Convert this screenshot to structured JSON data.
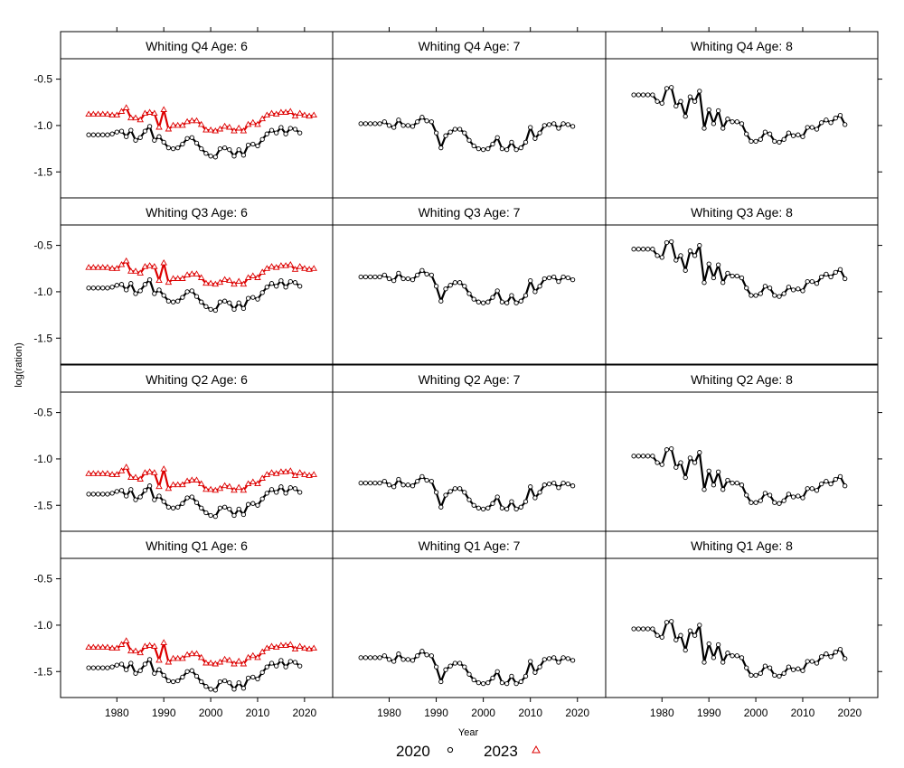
{
  "chart_data": {
    "type": "line",
    "xlabel": "Year",
    "ylabel": "log(ration)",
    "xlim": [
      1968,
      2026
    ],
    "ylim": [
      -1.78,
      -0.28
    ],
    "x_ticks": [
      1980,
      1990,
      2000,
      2010,
      2020
    ],
    "y_ticks": [
      -1.5,
      -1.0,
      -0.5
    ],
    "grid": false,
    "legend": {
      "placement": "bottom",
      "entries": [
        {
          "name": "2020",
          "color": "#000000",
          "marker": "circle"
        },
        {
          "name": "2023",
          "color": "#dd0000",
          "marker": "triangle"
        }
      ]
    },
    "panels": [
      {
        "title": "Whiting Q4 Age: 6",
        "row": 0,
        "col": 0,
        "base": -1.1,
        "has2023": true,
        "offset2023": 0.22
      },
      {
        "title": "Whiting Q4 Age: 7",
        "row": 0,
        "col": 1,
        "base": -0.98,
        "has2023": false
      },
      {
        "title": "Whiting Q4 Age: 8",
        "row": 0,
        "col": 2,
        "base": -0.67,
        "has2023": false
      },
      {
        "title": "Whiting Q3 Age: 6",
        "row": 1,
        "col": 0,
        "base": -0.96,
        "has2023": true,
        "offset2023": 0.22
      },
      {
        "title": "Whiting Q3 Age: 7",
        "row": 1,
        "col": 1,
        "base": -0.84,
        "has2023": false
      },
      {
        "title": "Whiting Q3 Age: 8",
        "row": 1,
        "col": 2,
        "base": -0.54,
        "has2023": false
      },
      {
        "title": "Whiting Q2 Age: 6",
        "row": 2,
        "col": 0,
        "base": -1.38,
        "has2023": true,
        "offset2023": 0.22
      },
      {
        "title": "Whiting Q2 Age: 7",
        "row": 2,
        "col": 1,
        "base": -1.26,
        "has2023": false
      },
      {
        "title": "Whiting Q2 Age: 8",
        "row": 2,
        "col": 2,
        "base": -0.97,
        "has2023": false
      },
      {
        "title": "Whiting Q1 Age: 6",
        "row": 3,
        "col": 0,
        "base": -1.46,
        "has2023": true,
        "offset2023": 0.22
      },
      {
        "title": "Whiting Q1 Age: 7",
        "row": 3,
        "col": 1,
        "base": -1.35,
        "has2023": false
      },
      {
        "title": "Whiting Q1 Age: 8",
        "row": 3,
        "col": 2,
        "base": -1.04,
        "has2023": false
      }
    ],
    "series_shapes": {
      "age6_2020": {
        "x": [
          1974,
          1975,
          1976,
          1977,
          1978,
          1979,
          1980,
          1981,
          1982,
          1983,
          1984,
          1985,
          1986,
          1987,
          1988,
          1989,
          1990,
          1991,
          1992,
          1993,
          1994,
          1995,
          1996,
          1997,
          1998,
          1999,
          2000,
          2001,
          2002,
          2003,
          2004,
          2005,
          2006,
          2007,
          2008,
          2009,
          2010,
          2011,
          2012,
          2013,
          2014,
          2015,
          2016,
          2017,
          2018,
          2019
        ],
        "y": [
          0,
          0,
          0,
          0,
          0,
          0.01,
          0.03,
          0.04,
          -0.02,
          0.05,
          -0.06,
          -0.03,
          0.04,
          0.09,
          -0.06,
          -0.02,
          -0.08,
          -0.14,
          -0.15,
          -0.14,
          -0.1,
          -0.04,
          -0.03,
          -0.09,
          -0.15,
          -0.2,
          -0.23,
          -0.24,
          -0.15,
          -0.14,
          -0.16,
          -0.23,
          -0.16,
          -0.22,
          -0.11,
          -0.1,
          -0.12,
          -0.05,
          0.01,
          0.05,
          0.02,
          0.08,
          0.01,
          0.07,
          0.06,
          0.02
        ]
      },
      "age6_2023": {
        "x": [
          1974,
          1975,
          1976,
          1977,
          1978,
          1979,
          1980,
          1981,
          1982,
          1983,
          1984,
          1985,
          1986,
          1987,
          1988,
          1989,
          1990,
          1991,
          1992,
          1993,
          1994,
          1995,
          1996,
          1997,
          1998,
          1999,
          2000,
          2001,
          2002,
          2003,
          2004,
          2005,
          2006,
          2007,
          2008,
          2009,
          2010,
          2011,
          2012,
          2013,
          2014,
          2015,
          2016,
          2017,
          2018,
          2019,
          2020,
          2021,
          2022
        ],
        "y": [
          0,
          0,
          0,
          0,
          0,
          -0.01,
          -0.01,
          0.03,
          0.07,
          -0.04,
          -0.04,
          -0.06,
          0.01,
          0.02,
          0.01,
          -0.14,
          0.05,
          -0.16,
          -0.12,
          -0.12,
          -0.12,
          -0.08,
          -0.07,
          -0.07,
          -0.11,
          -0.17,
          -0.17,
          -0.18,
          -0.16,
          -0.13,
          -0.14,
          -0.18,
          -0.15,
          -0.18,
          -0.11,
          -0.09,
          -0.11,
          -0.05,
          -0.01,
          0.01,
          0,
          0.02,
          0.02,
          0.03,
          -0.02,
          0.01,
          -0.01,
          -0.02,
          -0.01
        ]
      },
      "age7_2020": {
        "x": [
          1974,
          1975,
          1976,
          1977,
          1978,
          1979,
          1980,
          1981,
          1982,
          1983,
          1984,
          1985,
          1986,
          1987,
          1988,
          1989,
          1990,
          1991,
          1992,
          1993,
          1994,
          1995,
          1996,
          1997,
          1998,
          1999,
          2000,
          2001,
          2002,
          2003,
          2004,
          2005,
          2006,
          2007,
          2008,
          2009,
          2010,
          2011,
          2012,
          2013,
          2014,
          2015,
          2016,
          2017,
          2018,
          2019
        ],
        "y": [
          0,
          0,
          0,
          0,
          0,
          0.02,
          -0.02,
          -0.04,
          0.04,
          -0.02,
          -0.02,
          -0.03,
          0.02,
          0.07,
          0.03,
          0.02,
          -0.1,
          -0.26,
          -0.13,
          -0.09,
          -0.06,
          -0.06,
          -0.1,
          -0.18,
          -0.24,
          -0.27,
          -0.28,
          -0.27,
          -0.22,
          -0.15,
          -0.27,
          -0.28,
          -0.2,
          -0.28,
          -0.26,
          -0.2,
          -0.04,
          -0.16,
          -0.1,
          -0.02,
          -0.01,
          0,
          -0.05,
          0,
          -0.01,
          -0.03
        ]
      },
      "age8_2020": {
        "x": [
          1974,
          1975,
          1976,
          1977,
          1978,
          1979,
          1980,
          1981,
          1982,
          1983,
          1984,
          1985,
          1986,
          1987,
          1988,
          1989,
          1990,
          1991,
          1992,
          1993,
          1994,
          1995,
          1996,
          1997,
          1998,
          1999,
          2000,
          2001,
          2002,
          2003,
          2004,
          2005,
          2006,
          2007,
          2008,
          2009,
          2010,
          2011,
          2012,
          2013,
          2014,
          2015,
          2016,
          2017,
          2018,
          2019
        ],
        "y": [
          0,
          0,
          0,
          0,
          0,
          -0.07,
          -0.09,
          0.07,
          0.08,
          -0.12,
          -0.07,
          -0.23,
          -0.02,
          -0.07,
          0.04,
          -0.36,
          -0.16,
          -0.31,
          -0.17,
          -0.36,
          -0.26,
          -0.29,
          -0.29,
          -0.31,
          -0.42,
          -0.5,
          -0.5,
          -0.48,
          -0.4,
          -0.42,
          -0.5,
          -0.51,
          -0.48,
          -0.41,
          -0.44,
          -0.43,
          -0.45,
          -0.35,
          -0.35,
          -0.37,
          -0.3,
          -0.27,
          -0.3,
          -0.25,
          -0.22,
          -0.32
        ]
      }
    }
  }
}
